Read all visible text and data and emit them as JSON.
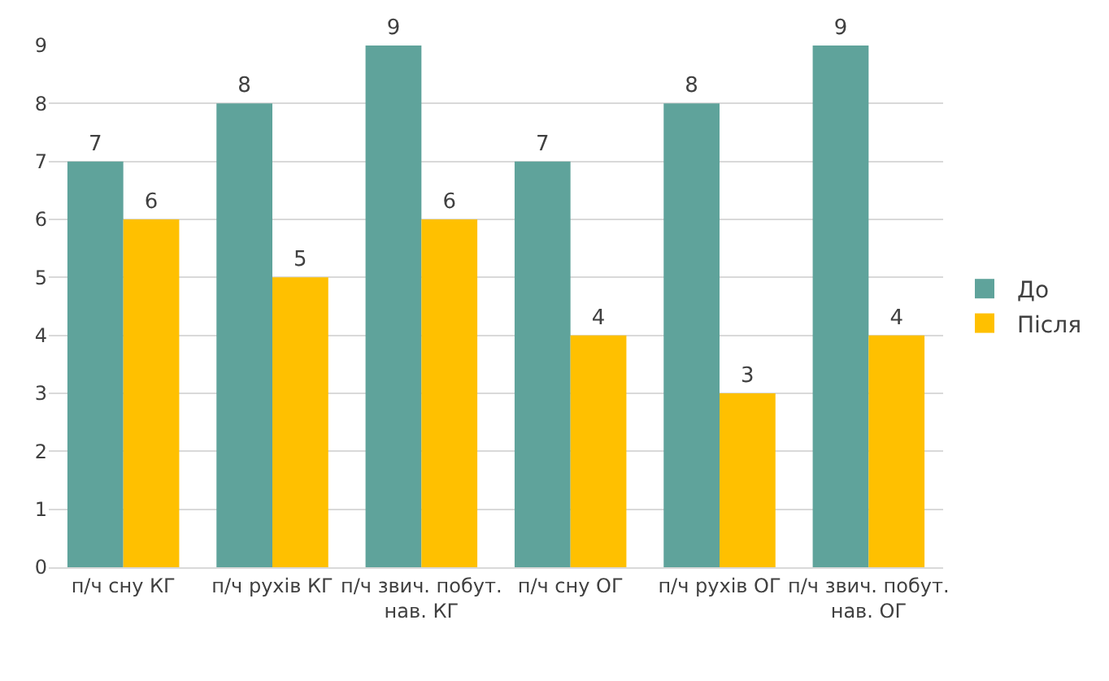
{
  "chart_data": {
    "type": "bar",
    "categories": [
      "п/ч сну КГ",
      "п/ч рухів КГ",
      "п/ч звич. побут. нав. КГ",
      "п/ч сну ОГ",
      "п/ч рухів ОГ",
      "п/ч звич. побут. нав. ОГ"
    ],
    "series": [
      {
        "name": "До",
        "color": "#5fa39b",
        "values": [
          7,
          8,
          9,
          7,
          8,
          9
        ]
      },
      {
        "name": "Після",
        "color": "#ffc000",
        "values": [
          6,
          5,
          6,
          4,
          3,
          4
        ]
      }
    ],
    "ylim": [
      0,
      9
    ],
    "yticks": [
      0,
      1,
      2,
      3,
      4,
      5,
      6,
      7,
      8,
      9
    ],
    "grid": "y",
    "legend": "right",
    "data_labels": true
  }
}
